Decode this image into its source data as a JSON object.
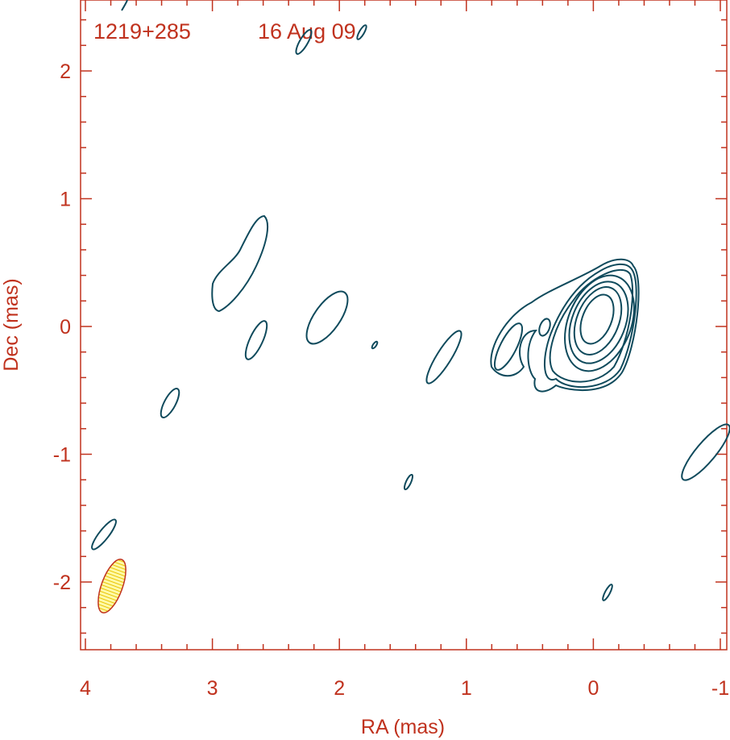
{
  "chart_data": {
    "type": "contour",
    "source": "1219+285",
    "date": "16 Aug 09",
    "xlabel": "RA (mas)",
    "ylabel": "Dec (mas)",
    "xlim": [
      4,
      -1
    ],
    "ylim": [
      -2.55,
      2.55
    ],
    "xticks": [
      "4",
      "3",
      "2",
      "1",
      "0",
      "-1"
    ],
    "yticks": [
      "2",
      "1",
      "0",
      "-1",
      "-2"
    ],
    "core": {
      "ra": 0.0,
      "dec": 0.0,
      "levels": 7
    },
    "components": [
      {
        "ra": 0.4,
        "dec": 0.0
      },
      {
        "ra": 0.6,
        "dec": -0.15
      },
      {
        "ra": 1.18,
        "dec": -0.24
      },
      {
        "ra": 1.73,
        "dec": -0.14
      },
      {
        "ra": 2.1,
        "dec": 0.07
      },
      {
        "ra": 2.65,
        "dec": -0.1
      },
      {
        "ra": 2.8,
        "dec": 0.45
      },
      {
        "ra": 3.33,
        "dec": -0.6
      },
      {
        "ra": 3.84,
        "dec": -1.62
      },
      {
        "ra": 1.47,
        "dec": -1.22
      },
      {
        "ra": -0.1,
        "dec": -2.1
      },
      {
        "ra": -0.88,
        "dec": -0.98
      },
      {
        "ra": 2.33,
        "dec": 2.25
      },
      {
        "ra": 1.82,
        "dec": 2.38
      },
      {
        "ra": 3.62,
        "dec": 2.52
      }
    ],
    "beam": {
      "ra": 3.8,
      "dec": -2.03,
      "major_mas": 0.45,
      "minor_mas": 0.17,
      "pa_deg": 20
    },
    "colors": {
      "frame": "#c0321e",
      "contour": "#0f4a5c",
      "beam_fill": "#fff46e"
    }
  }
}
